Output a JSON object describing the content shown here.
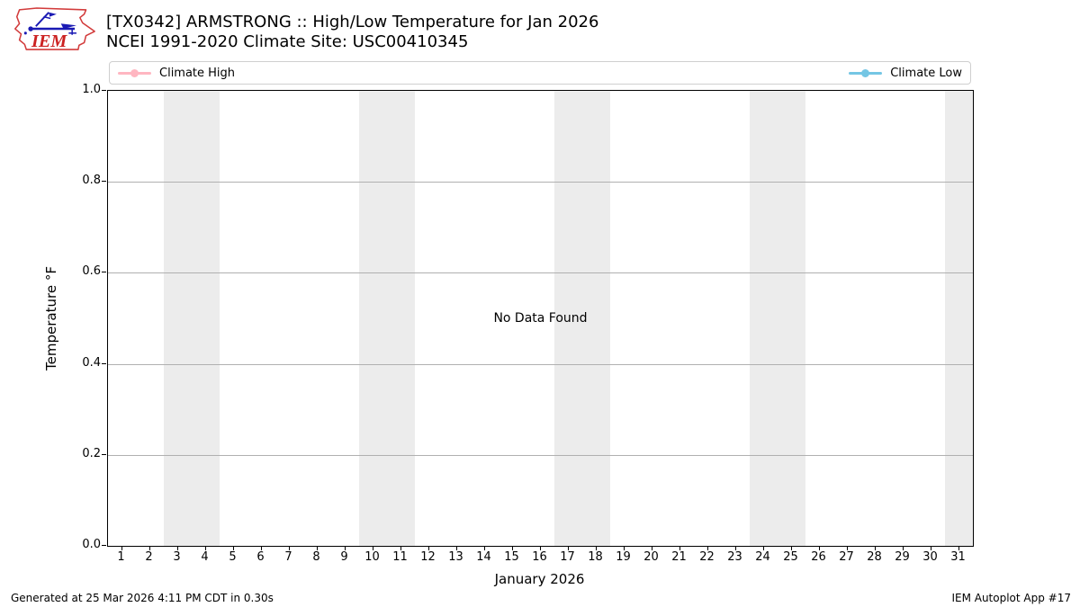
{
  "header": {
    "logo_text": "IEM",
    "title_line1": "[TX0342] ARMSTRONG :: High/Low Temperature for Jan 2026",
    "title_line2": "NCEI 1991-2020 Climate Site: USC00410345"
  },
  "legend": {
    "items": [
      {
        "label": "Climate High",
        "color": "#ffb6c1"
      },
      {
        "label": "Climate Low",
        "color": "#74c6e4"
      }
    ]
  },
  "chart_data": {
    "type": "line",
    "title": "[TX0342] ARMSTRONG :: High/Low Temperature for Jan 2026",
    "subtitle": "NCEI 1991-2020 Climate Site: USC00410345",
    "xlabel": "January 2026",
    "ylabel": "Temperature °F",
    "xlim": [
      0.5,
      31.5
    ],
    "ylim": [
      0.0,
      1.0
    ],
    "x_ticks": [
      1,
      2,
      3,
      4,
      5,
      6,
      7,
      8,
      9,
      10,
      11,
      12,
      13,
      14,
      15,
      16,
      17,
      18,
      19,
      20,
      21,
      22,
      23,
      24,
      25,
      26,
      27,
      28,
      29,
      30,
      31
    ],
    "y_ticks": [
      0.0,
      0.2,
      0.4,
      0.6,
      0.8,
      1.0
    ],
    "y_tick_labels": [
      "0.0",
      "0.2",
      "0.4",
      "0.6",
      "0.8",
      "1.0"
    ],
    "grid": true,
    "gridline_values": [
      0.2,
      0.4,
      0.6,
      0.8
    ],
    "weekend_bands_days": [
      [
        3,
        4
      ],
      [
        10,
        11
      ],
      [
        17,
        18
      ],
      [
        24,
        25
      ],
      [
        31,
        31
      ]
    ],
    "band_color": "#ececec",
    "series": [
      {
        "name": "Climate High",
        "color": "#ffb6c1",
        "values": []
      },
      {
        "name": "Climate Low",
        "color": "#74c6e4",
        "values": []
      }
    ],
    "no_data_message": "No Data Found",
    "legend_position": "top"
  },
  "footer": {
    "left": "Generated at 25 Mar 2026 4:11 PM CDT in 0.30s",
    "right": "IEM Autoplot App #17"
  }
}
